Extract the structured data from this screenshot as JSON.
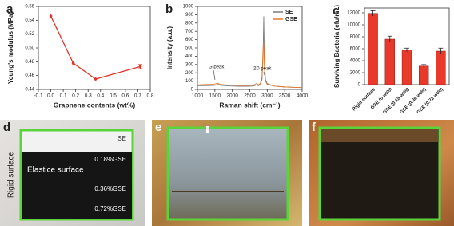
{
  "chart_data": [
    {
      "panel": "a",
      "type": "line",
      "x": [
        0,
        0.18,
        0.36,
        0.72
      ],
      "values": [
        0.546,
        0.478,
        0.455,
        0.473
      ],
      "errors": [
        0.003,
        0.003,
        0.003,
        0.003
      ],
      "color": "#e0352b",
      "x_label": "Grapnene contents (wt%)",
      "y_label": "Young's modulus (MPa)",
      "xlim": [
        -0.1,
        0.8
      ],
      "xticks": [
        -0.1,
        {
          "value": 0,
          "label": "0.0"
        },
        0.1,
        0.2,
        0.3,
        0.4,
        0.5,
        0.6,
        0.7,
        0.8
      ],
      "ylim": [
        0.44,
        0.56
      ],
      "yticks": [
        0.44,
        0.46,
        0.48,
        {
          "value": 0.5,
          "label": "0.50"
        },
        0.52,
        0.54,
        0.56
      ]
    },
    {
      "panel": "b",
      "type": "line",
      "x": [
        1000,
        1200,
        1400,
        1500,
        1580,
        1650,
        1800,
        2000,
        2200,
        2400,
        2600,
        2690,
        2750,
        2800,
        2850,
        2880,
        2900,
        2920,
        2950,
        3000,
        3200,
        3500,
        3800,
        4000
      ],
      "series": [
        {
          "name": "SE",
          "color": "#7a7a7a",
          "values": [
            45,
            45,
            48,
            50,
            60,
            50,
            45,
            40,
            38,
            38,
            40,
            55,
            45,
            60,
            120,
            400,
            880,
            300,
            120,
            70,
            40,
            30,
            25,
            22
          ]
        },
        {
          "name": "GSE",
          "color": "#e8782c",
          "values": [
            55,
            58,
            62,
            65,
            75,
            60,
            55,
            50,
            48,
            48,
            50,
            72,
            55,
            70,
            150,
            500,
            560,
            250,
            100,
            60,
            40,
            30,
            25,
            22
          ]
        }
      ],
      "annotations": [
        "G peak",
        "2D peak"
      ],
      "x_label": "Raman shift (cm⁻¹)",
      "y_label": "Intensity (a.u.)",
      "xlim": [
        1000,
        4000
      ],
      "xticks": [
        1000,
        1500,
        2000,
        2500,
        3000,
        3500,
        4000
      ],
      "ylim": [
        0,
        1000
      ],
      "yticks": [
        0,
        100,
        200,
        300,
        400,
        500,
        600,
        700,
        800,
        900,
        1000
      ]
    },
    {
      "panel": "c",
      "type": "bar",
      "categories": [
        "Rigid surface",
        "GSE (0 wt%)",
        "GSE (0.18 wt%)",
        "GSE (0.36 wt%)",
        "GSE (0.72 wt%)"
      ],
      "values": [
        11900,
        7600,
        5800,
        3100,
        5600
      ],
      "errors": [
        450,
        500,
        300,
        250,
        500
      ],
      "color": "#e8392b",
      "y_label": "Surviving Bacteria (cfu/mL)",
      "ylim": [
        0,
        12800
      ],
      "yticks": [
        0,
        2000,
        4000,
        6000,
        8000,
        10000,
        12000
      ]
    }
  ],
  "photos": [
    {
      "panel": "d",
      "side_label": "Rigid surface",
      "labels": [
        "SE",
        "0.18%GSE",
        "Elastice surface",
        "0.36%GSE",
        "0.72%GSE"
      ]
    },
    {
      "panel": "e"
    },
    {
      "panel": "f"
    }
  ]
}
